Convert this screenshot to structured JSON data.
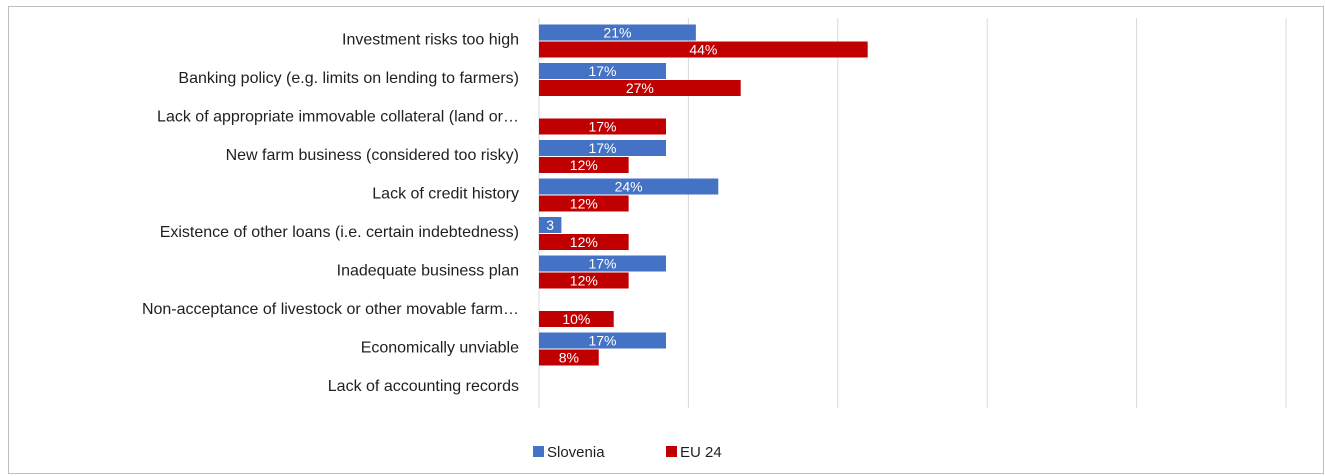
{
  "title": "",
  "colors": {
    "slovenia": "#4472C4",
    "eu24": "#C00000",
    "grid": "#d9d9d9"
  },
  "chart_data": {
    "type": "bar",
    "orientation": "horizontal",
    "categories": [
      "Investment risks too high",
      "Banking policy (e.g. limits on lending to farmers)",
      "Lack of appropriate immovable collateral (land or…",
      "New farm business (considered too risky)",
      "Lack of credit history",
      "Existence of other loans (i.e. certain indebtedness)",
      "Inadequate business plan",
      "Non-acceptance of livestock or other movable farm…",
      "Economically unviable",
      "Lack of accounting records"
    ],
    "series": [
      {
        "name": "Slovenia",
        "color": "#4472C4",
        "values": [
          21,
          17,
          null,
          17,
          24,
          3,
          17,
          null,
          17,
          null
        ],
        "labels": [
          "21%",
          "17%",
          "",
          "17%",
          "24%",
          "3",
          "17%",
          "",
          "17%",
          ""
        ]
      },
      {
        "name": "EU 24",
        "color": "#C00000",
        "values": [
          44,
          27,
          17,
          12,
          12,
          12,
          12,
          10,
          8,
          null
        ],
        "labels": [
          "44%",
          "27%",
          "17%",
          "12%",
          "12%",
          "12%",
          "12%",
          "10%",
          "8%",
          ""
        ]
      }
    ],
    "xlim": [
      0,
      100
    ],
    "grid": true,
    "legend": "bottom"
  }
}
